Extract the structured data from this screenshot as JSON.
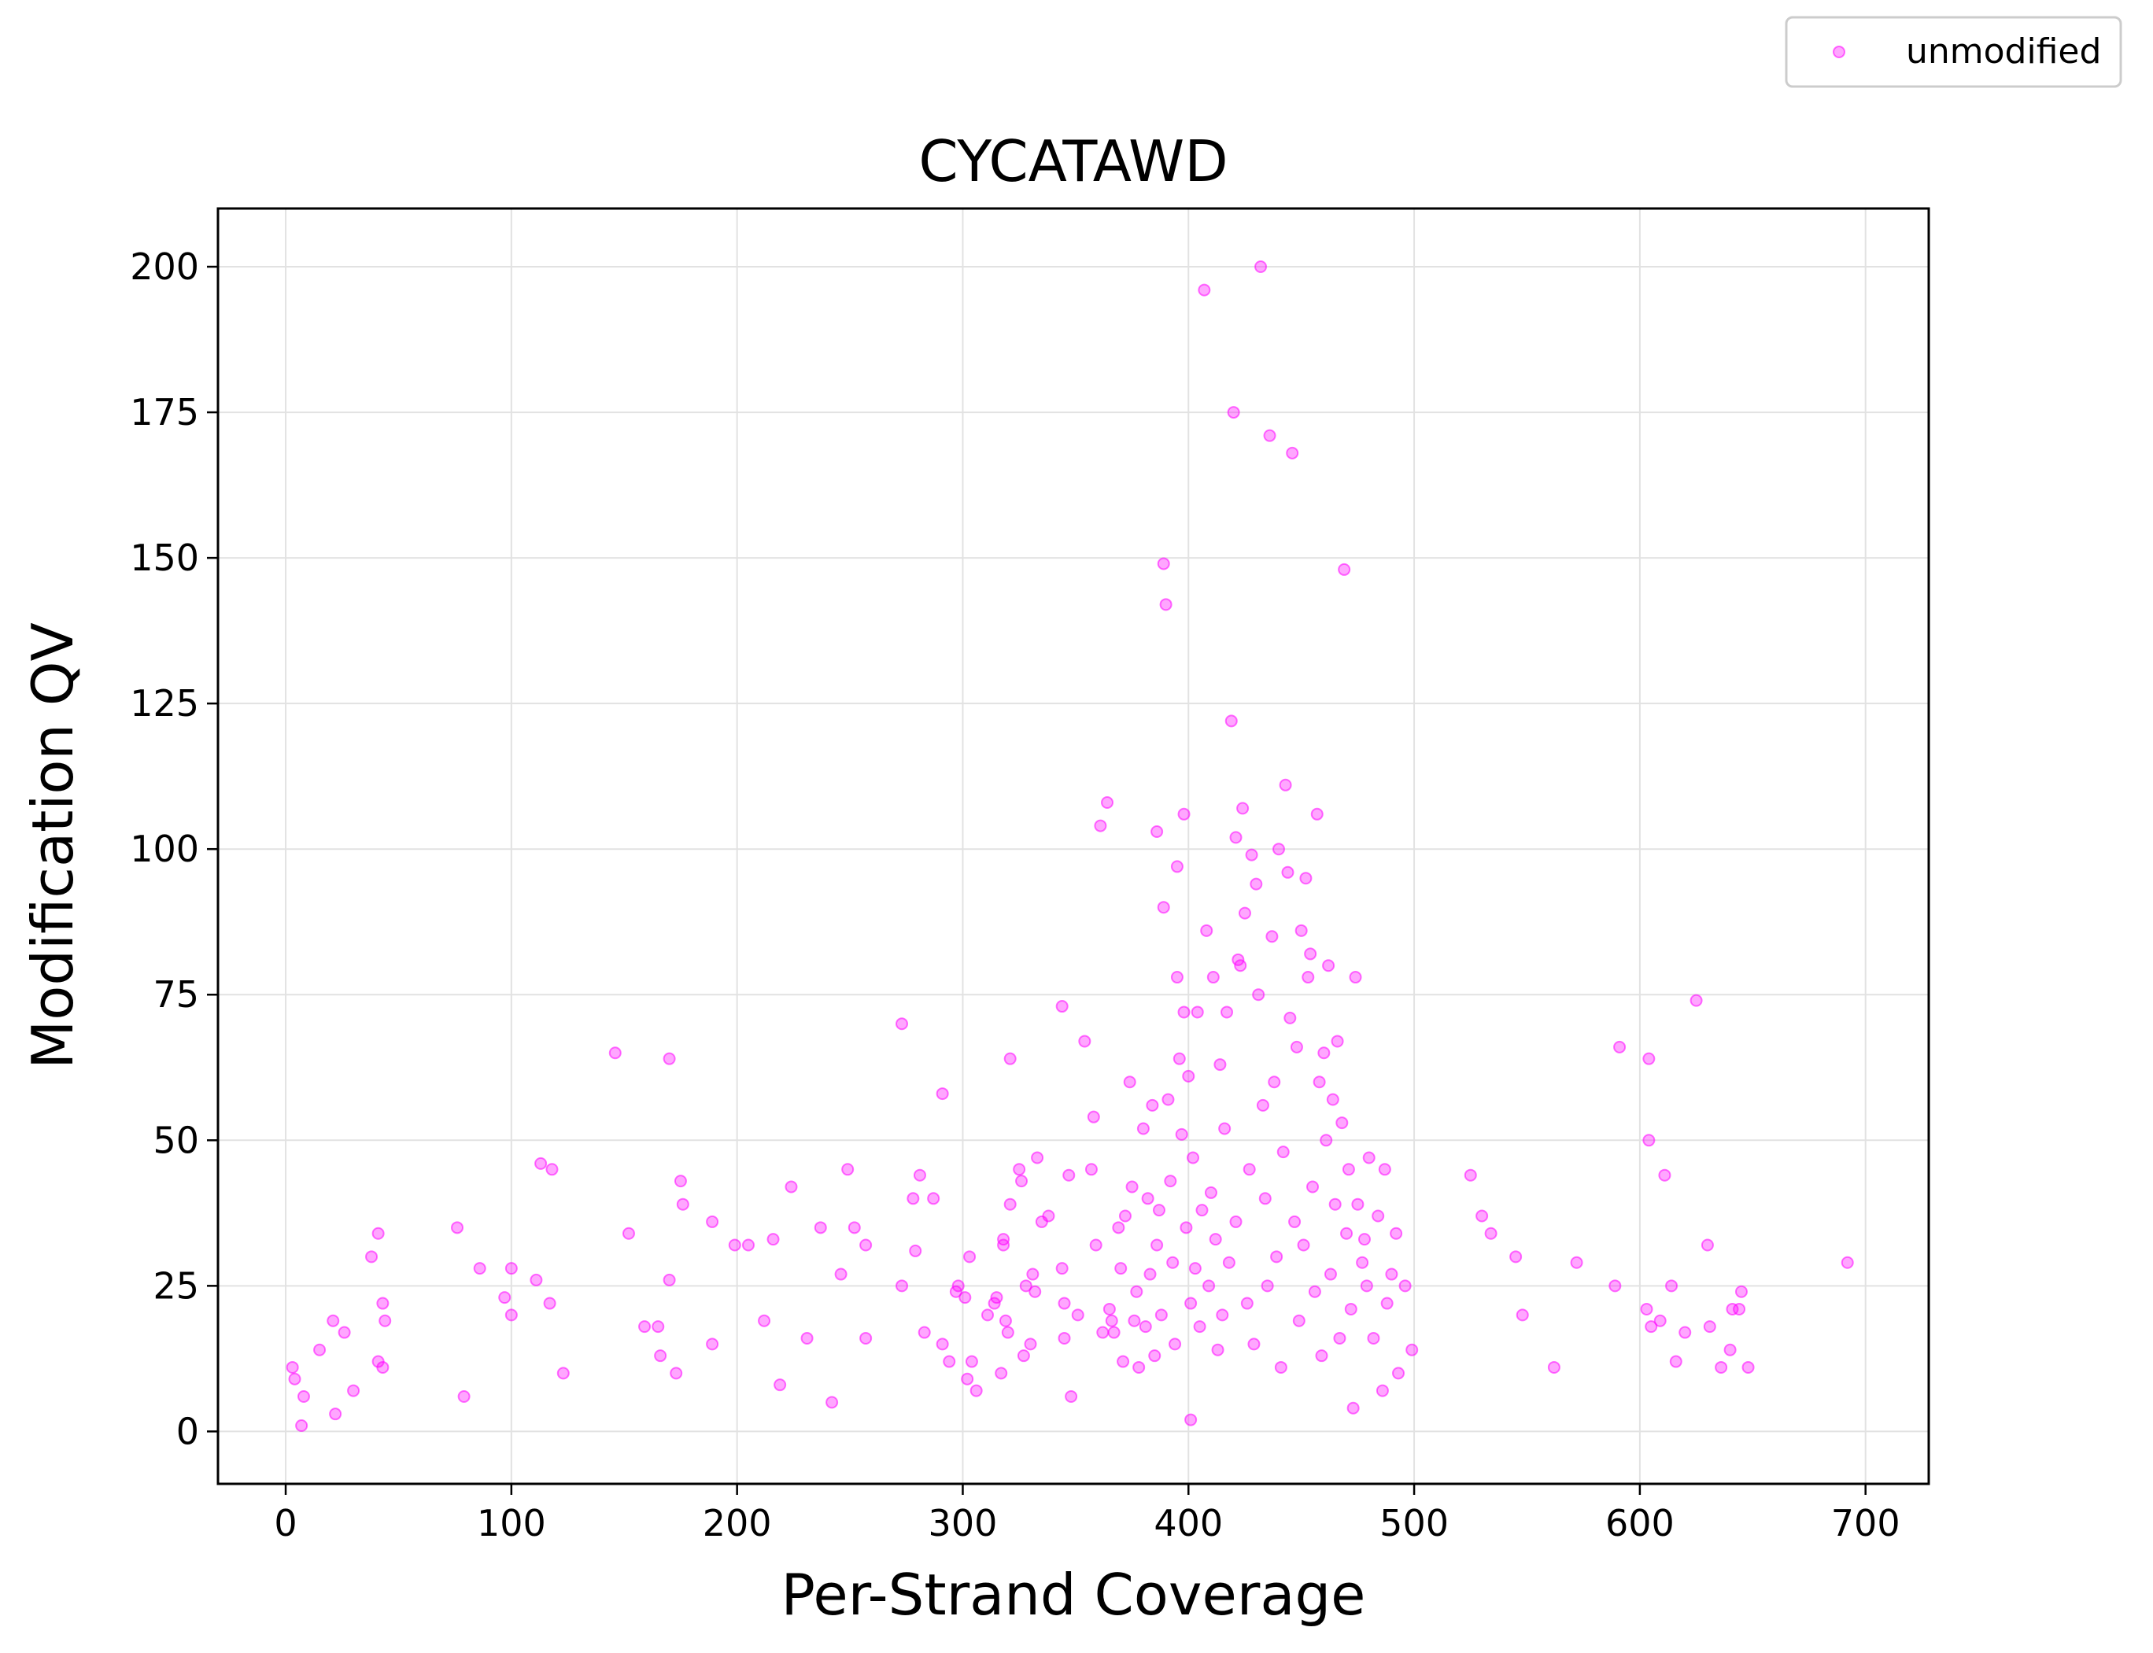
{
  "chart_data": {
    "type": "scatter",
    "title": "CYCATAWD",
    "xlabel": "Per-Strand Coverage",
    "ylabel": "Modification QV",
    "xlim": [
      -30,
      728
    ],
    "ylim": [
      -9,
      210
    ],
    "xticks": [
      0,
      100,
      200,
      300,
      400,
      500,
      600,
      700
    ],
    "yticks": [
      0,
      25,
      50,
      75,
      100,
      125,
      150,
      175,
      200
    ],
    "grid": true,
    "legend_position": "top-right, outside plot",
    "series": [
      {
        "name": "unmodified",
        "color": "#ff00ff",
        "points": [
          [
            3,
            11
          ],
          [
            4,
            9
          ],
          [
            7,
            1
          ],
          [
            8,
            6
          ],
          [
            15,
            14
          ],
          [
            21,
            19
          ],
          [
            22,
            3
          ],
          [
            26,
            17
          ],
          [
            30,
            7
          ],
          [
            38,
            30
          ],
          [
            41,
            34
          ],
          [
            41,
            12
          ],
          [
            43,
            22
          ],
          [
            43,
            11
          ],
          [
            44,
            19
          ],
          [
            76,
            35
          ],
          [
            79,
            6
          ],
          [
            86,
            28
          ],
          [
            97,
            23
          ],
          [
            100,
            28
          ],
          [
            100,
            20
          ],
          [
            111,
            26
          ],
          [
            113,
            46
          ],
          [
            117,
            22
          ],
          [
            118,
            45
          ],
          [
            123,
            10
          ],
          [
            146,
            65
          ],
          [
            152,
            34
          ],
          [
            159,
            18
          ],
          [
            165,
            18
          ],
          [
            166,
            13
          ],
          [
            170,
            64
          ],
          [
            170,
            26
          ],
          [
            173,
            10
          ],
          [
            175,
            43
          ],
          [
            176,
            39
          ],
          [
            189,
            36
          ],
          [
            189,
            15
          ],
          [
            199,
            32
          ],
          [
            205,
            32
          ],
          [
            212,
            19
          ],
          [
            216,
            33
          ],
          [
            219,
            8
          ],
          [
            224,
            42
          ],
          [
            231,
            16
          ],
          [
            237,
            35
          ],
          [
            242,
            5
          ],
          [
            246,
            27
          ],
          [
            249,
            45
          ],
          [
            252,
            35
          ],
          [
            257,
            32
          ],
          [
            257,
            16
          ],
          [
            273,
            70
          ],
          [
            273,
            25
          ],
          [
            278,
            40
          ],
          [
            279,
            31
          ],
          [
            281,
            44
          ],
          [
            283,
            17
          ],
          [
            287,
            40
          ],
          [
            291,
            58
          ],
          [
            291,
            15
          ],
          [
            294,
            12
          ],
          [
            297,
            24
          ],
          [
            298,
            25
          ],
          [
            301,
            23
          ],
          [
            302,
            9
          ],
          [
            303,
            30
          ],
          [
            304,
            12
          ],
          [
            306,
            7
          ],
          [
            311,
            20
          ],
          [
            314,
            22
          ],
          [
            315,
            23
          ],
          [
            317,
            10
          ],
          [
            318,
            33
          ],
          [
            318,
            32
          ],
          [
            319,
            19
          ],
          [
            320,
            17
          ],
          [
            321,
            64
          ],
          [
            321,
            39
          ],
          [
            325,
            45
          ],
          [
            326,
            43
          ],
          [
            327,
            13
          ],
          [
            328,
            25
          ],
          [
            330,
            15
          ],
          [
            331,
            27
          ],
          [
            332,
            24
          ],
          [
            333,
            47
          ],
          [
            335,
            36
          ],
          [
            338,
            37
          ],
          [
            344,
            73
          ],
          [
            344,
            28
          ],
          [
            345,
            22
          ],
          [
            345,
            16
          ],
          [
            347,
            44
          ],
          [
            348,
            6
          ],
          [
            351,
            20
          ],
          [
            354,
            67
          ],
          [
            357,
            45
          ],
          [
            358,
            54
          ],
          [
            359,
            32
          ],
          [
            361,
            104
          ],
          [
            362,
            17
          ],
          [
            364,
            108
          ],
          [
            365,
            21
          ],
          [
            366,
            19
          ],
          [
            367,
            17
          ],
          [
            369,
            35
          ],
          [
            370,
            28
          ],
          [
            371,
            12
          ],
          [
            372,
            37
          ],
          [
            374,
            60
          ],
          [
            375,
            42
          ],
          [
            376,
            19
          ],
          [
            377,
            24
          ],
          [
            378,
            11
          ],
          [
            380,
            52
          ],
          [
            381,
            18
          ],
          [
            382,
            40
          ],
          [
            383,
            27
          ],
          [
            384,
            56
          ],
          [
            385,
            13
          ],
          [
            386,
            103
          ],
          [
            386,
            32
          ],
          [
            387,
            38
          ],
          [
            388,
            20
          ],
          [
            389,
            149
          ],
          [
            389,
            90
          ],
          [
            390,
            142
          ],
          [
            391,
            57
          ],
          [
            392,
            43
          ],
          [
            393,
            29
          ],
          [
            394,
            15
          ],
          [
            395,
            78
          ],
          [
            395,
            97
          ],
          [
            396,
            64
          ],
          [
            397,
            51
          ],
          [
            398,
            106
          ],
          [
            398,
            72
          ],
          [
            399,
            35
          ],
          [
            400,
            61
          ],
          [
            401,
            22
          ],
          [
            401,
            2
          ],
          [
            402,
            47
          ],
          [
            403,
            28
          ],
          [
            404,
            72
          ],
          [
            405,
            18
          ],
          [
            406,
            38
          ],
          [
            407,
            196
          ],
          [
            408,
            86
          ],
          [
            409,
            25
          ],
          [
            410,
            41
          ],
          [
            411,
            78
          ],
          [
            412,
            33
          ],
          [
            413,
            14
          ],
          [
            414,
            63
          ],
          [
            415,
            20
          ],
          [
            416,
            52
          ],
          [
            417,
            72
          ],
          [
            418,
            29
          ],
          [
            419,
            122
          ],
          [
            420,
            175
          ],
          [
            421,
            102
          ],
          [
            421,
            36
          ],
          [
            422,
            81
          ],
          [
            423,
            80
          ],
          [
            424,
            107
          ],
          [
            425,
            89
          ],
          [
            426,
            22
          ],
          [
            427,
            45
          ],
          [
            428,
            99
          ],
          [
            429,
            15
          ],
          [
            430,
            94
          ],
          [
            431,
            75
          ],
          [
            432,
            200
          ],
          [
            433,
            56
          ],
          [
            434,
            40
          ],
          [
            435,
            25
          ],
          [
            436,
            171
          ],
          [
            437,
            85
          ],
          [
            438,
            60
          ],
          [
            439,
            30
          ],
          [
            440,
            100
          ],
          [
            441,
            11
          ],
          [
            442,
            48
          ],
          [
            443,
            111
          ],
          [
            444,
            96
          ],
          [
            445,
            71
          ],
          [
            446,
            168
          ],
          [
            447,
            36
          ],
          [
            448,
            66
          ],
          [
            449,
            19
          ],
          [
            450,
            86
          ],
          [
            451,
            32
          ],
          [
            452,
            95
          ],
          [
            453,
            78
          ],
          [
            454,
            82
          ],
          [
            455,
            42
          ],
          [
            456,
            24
          ],
          [
            457,
            106
          ],
          [
            458,
            60
          ],
          [
            459,
            13
          ],
          [
            460,
            65
          ],
          [
            461,
            50
          ],
          [
            462,
            80
          ],
          [
            463,
            27
          ],
          [
            464,
            57
          ],
          [
            465,
            39
          ],
          [
            466,
            67
          ],
          [
            467,
            16
          ],
          [
            468,
            53
          ],
          [
            469,
            148
          ],
          [
            470,
            34
          ],
          [
            471,
            45
          ],
          [
            472,
            21
          ],
          [
            473,
            4
          ],
          [
            474,
            78
          ],
          [
            475,
            39
          ],
          [
            477,
            29
          ],
          [
            478,
            33
          ],
          [
            479,
            25
          ],
          [
            480,
            47
          ],
          [
            482,
            16
          ],
          [
            484,
            37
          ],
          [
            486,
            7
          ],
          [
            487,
            45
          ],
          [
            488,
            22
          ],
          [
            490,
            27
          ],
          [
            492,
            34
          ],
          [
            493,
            10
          ],
          [
            496,
            25
          ],
          [
            499,
            14
          ],
          [
            525,
            44
          ],
          [
            530,
            37
          ],
          [
            534,
            34
          ],
          [
            545,
            30
          ],
          [
            548,
            20
          ],
          [
            562,
            11
          ],
          [
            572,
            29
          ],
          [
            589,
            25
          ],
          [
            591,
            66
          ],
          [
            603,
            21
          ],
          [
            604,
            64
          ],
          [
            604,
            50
          ],
          [
            605,
            18
          ],
          [
            609,
            19
          ],
          [
            611,
            44
          ],
          [
            614,
            25
          ],
          [
            616,
            12
          ],
          [
            620,
            17
          ],
          [
            625,
            74
          ],
          [
            630,
            32
          ],
          [
            631,
            18
          ],
          [
            636,
            11
          ],
          [
            640,
            14
          ],
          [
            641,
            21
          ],
          [
            644,
            21
          ],
          [
            645,
            24
          ],
          [
            648,
            11
          ],
          [
            692,
            29
          ]
        ]
      }
    ]
  }
}
